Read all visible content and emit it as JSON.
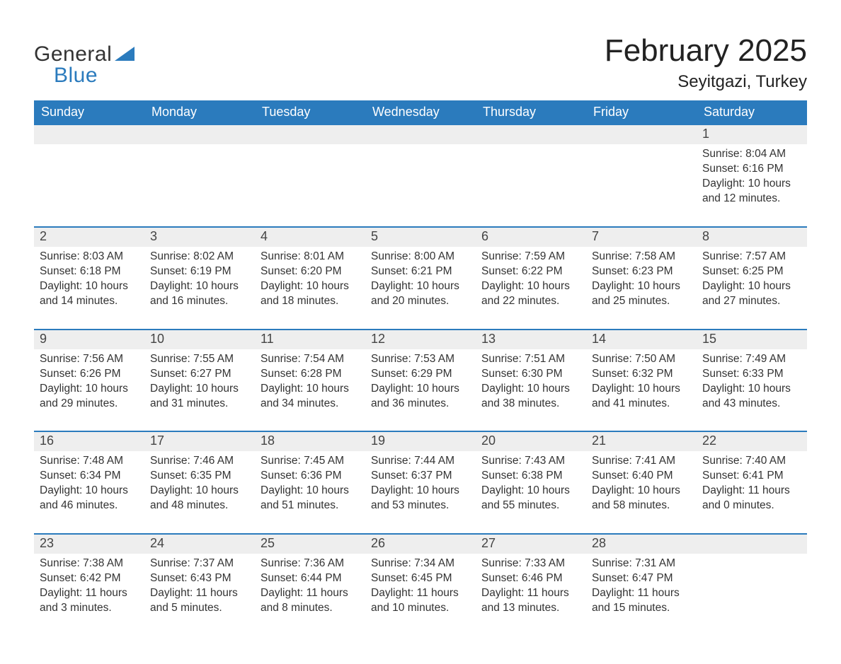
{
  "brand": {
    "word1": "General",
    "word2": "Blue"
  },
  "title": {
    "month": "February 2025",
    "location": "Seyitgazi, Turkey"
  },
  "colors": {
    "brand_blue": "#2b7bbd",
    "daynum_bg": "#eeeeee",
    "text": "#222222",
    "background": "#ffffff"
  },
  "weekdays": [
    "Sunday",
    "Monday",
    "Tuesday",
    "Wednesday",
    "Thursday",
    "Friday",
    "Saturday"
  ],
  "weeks": [
    [
      null,
      null,
      null,
      null,
      null,
      null,
      {
        "n": "1",
        "sunrise": "Sunrise: 8:04 AM",
        "sunset": "Sunset: 6:16 PM",
        "day1": "Daylight: 10 hours",
        "day2": "and 12 minutes."
      }
    ],
    [
      {
        "n": "2",
        "sunrise": "Sunrise: 8:03 AM",
        "sunset": "Sunset: 6:18 PM",
        "day1": "Daylight: 10 hours",
        "day2": "and 14 minutes."
      },
      {
        "n": "3",
        "sunrise": "Sunrise: 8:02 AM",
        "sunset": "Sunset: 6:19 PM",
        "day1": "Daylight: 10 hours",
        "day2": "and 16 minutes."
      },
      {
        "n": "4",
        "sunrise": "Sunrise: 8:01 AM",
        "sunset": "Sunset: 6:20 PM",
        "day1": "Daylight: 10 hours",
        "day2": "and 18 minutes."
      },
      {
        "n": "5",
        "sunrise": "Sunrise: 8:00 AM",
        "sunset": "Sunset: 6:21 PM",
        "day1": "Daylight: 10 hours",
        "day2": "and 20 minutes."
      },
      {
        "n": "6",
        "sunrise": "Sunrise: 7:59 AM",
        "sunset": "Sunset: 6:22 PM",
        "day1": "Daylight: 10 hours",
        "day2": "and 22 minutes."
      },
      {
        "n": "7",
        "sunrise": "Sunrise: 7:58 AM",
        "sunset": "Sunset: 6:23 PM",
        "day1": "Daylight: 10 hours",
        "day2": "and 25 minutes."
      },
      {
        "n": "8",
        "sunrise": "Sunrise: 7:57 AM",
        "sunset": "Sunset: 6:25 PM",
        "day1": "Daylight: 10 hours",
        "day2": "and 27 minutes."
      }
    ],
    [
      {
        "n": "9",
        "sunrise": "Sunrise: 7:56 AM",
        "sunset": "Sunset: 6:26 PM",
        "day1": "Daylight: 10 hours",
        "day2": "and 29 minutes."
      },
      {
        "n": "10",
        "sunrise": "Sunrise: 7:55 AM",
        "sunset": "Sunset: 6:27 PM",
        "day1": "Daylight: 10 hours",
        "day2": "and 31 minutes."
      },
      {
        "n": "11",
        "sunrise": "Sunrise: 7:54 AM",
        "sunset": "Sunset: 6:28 PM",
        "day1": "Daylight: 10 hours",
        "day2": "and 34 minutes."
      },
      {
        "n": "12",
        "sunrise": "Sunrise: 7:53 AM",
        "sunset": "Sunset: 6:29 PM",
        "day1": "Daylight: 10 hours",
        "day2": "and 36 minutes."
      },
      {
        "n": "13",
        "sunrise": "Sunrise: 7:51 AM",
        "sunset": "Sunset: 6:30 PM",
        "day1": "Daylight: 10 hours",
        "day2": "and 38 minutes."
      },
      {
        "n": "14",
        "sunrise": "Sunrise: 7:50 AM",
        "sunset": "Sunset: 6:32 PM",
        "day1": "Daylight: 10 hours",
        "day2": "and 41 minutes."
      },
      {
        "n": "15",
        "sunrise": "Sunrise: 7:49 AM",
        "sunset": "Sunset: 6:33 PM",
        "day1": "Daylight: 10 hours",
        "day2": "and 43 minutes."
      }
    ],
    [
      {
        "n": "16",
        "sunrise": "Sunrise: 7:48 AM",
        "sunset": "Sunset: 6:34 PM",
        "day1": "Daylight: 10 hours",
        "day2": "and 46 minutes."
      },
      {
        "n": "17",
        "sunrise": "Sunrise: 7:46 AM",
        "sunset": "Sunset: 6:35 PM",
        "day1": "Daylight: 10 hours",
        "day2": "and 48 minutes."
      },
      {
        "n": "18",
        "sunrise": "Sunrise: 7:45 AM",
        "sunset": "Sunset: 6:36 PM",
        "day1": "Daylight: 10 hours",
        "day2": "and 51 minutes."
      },
      {
        "n": "19",
        "sunrise": "Sunrise: 7:44 AM",
        "sunset": "Sunset: 6:37 PM",
        "day1": "Daylight: 10 hours",
        "day2": "and 53 minutes."
      },
      {
        "n": "20",
        "sunrise": "Sunrise: 7:43 AM",
        "sunset": "Sunset: 6:38 PM",
        "day1": "Daylight: 10 hours",
        "day2": "and 55 minutes."
      },
      {
        "n": "21",
        "sunrise": "Sunrise: 7:41 AM",
        "sunset": "Sunset: 6:40 PM",
        "day1": "Daylight: 10 hours",
        "day2": "and 58 minutes."
      },
      {
        "n": "22",
        "sunrise": "Sunrise: 7:40 AM",
        "sunset": "Sunset: 6:41 PM",
        "day1": "Daylight: 11 hours",
        "day2": "and 0 minutes."
      }
    ],
    [
      {
        "n": "23",
        "sunrise": "Sunrise: 7:38 AM",
        "sunset": "Sunset: 6:42 PM",
        "day1": "Daylight: 11 hours",
        "day2": "and 3 minutes."
      },
      {
        "n": "24",
        "sunrise": "Sunrise: 7:37 AM",
        "sunset": "Sunset: 6:43 PM",
        "day1": "Daylight: 11 hours",
        "day2": "and 5 minutes."
      },
      {
        "n": "25",
        "sunrise": "Sunrise: 7:36 AM",
        "sunset": "Sunset: 6:44 PM",
        "day1": "Daylight: 11 hours",
        "day2": "and 8 minutes."
      },
      {
        "n": "26",
        "sunrise": "Sunrise: 7:34 AM",
        "sunset": "Sunset: 6:45 PM",
        "day1": "Daylight: 11 hours",
        "day2": "and 10 minutes."
      },
      {
        "n": "27",
        "sunrise": "Sunrise: 7:33 AM",
        "sunset": "Sunset: 6:46 PM",
        "day1": "Daylight: 11 hours",
        "day2": "and 13 minutes."
      },
      {
        "n": "28",
        "sunrise": "Sunrise: 7:31 AM",
        "sunset": "Sunset: 6:47 PM",
        "day1": "Daylight: 11 hours",
        "day2": "and 15 minutes."
      },
      null
    ]
  ]
}
